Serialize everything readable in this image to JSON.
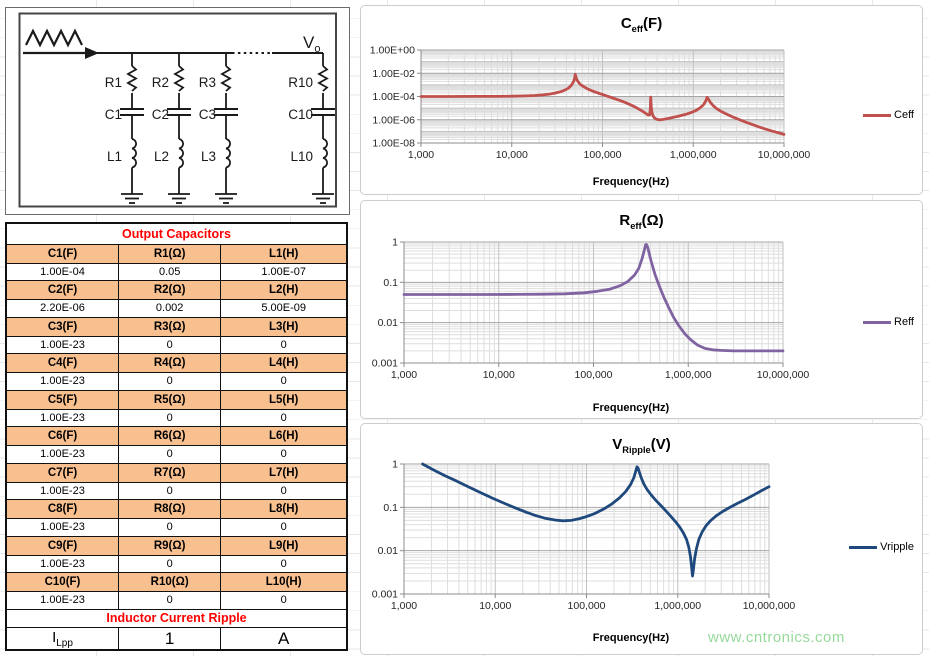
{
  "circuit": {
    "source_icon": "sawtooth-wave",
    "output": {
      "base": "V",
      "sub": "o"
    },
    "branches": [
      {
        "resistor": "R1",
        "capacitor": "C1",
        "inductor": "L1"
      },
      {
        "resistor": "R2",
        "capacitor": "C2",
        "inductor": "L2"
      },
      {
        "resistor": "R3",
        "capacitor": "C3",
        "inductor": "L3"
      },
      {
        "resistor": "R10",
        "capacitor": "C10",
        "inductor": "L10"
      }
    ]
  },
  "table": {
    "title": "Output Capacitors",
    "title_color": "#FF0000",
    "header_bg": "#F8BF8F",
    "component_rows": [
      {
        "labels": [
          "C1(F)",
          "R1(Ω)",
          "L1(H)"
        ],
        "values": [
          "1.00E-04",
          "0.05",
          "1.00E-07"
        ]
      },
      {
        "labels": [
          "C2(F)",
          "R2(Ω)",
          "L2(H)"
        ],
        "values": [
          "2.20E-06",
          "0.002",
          "5.00E-09"
        ]
      },
      {
        "labels": [
          "C3(F)",
          "R3(Ω)",
          "L3(H)"
        ],
        "values": [
          "1.00E-23",
          "0",
          "0"
        ]
      },
      {
        "labels": [
          "C4(F)",
          "R4(Ω)",
          "L4(H)"
        ],
        "values": [
          "1.00E-23",
          "0",
          "0"
        ]
      },
      {
        "labels": [
          "C5(F)",
          "R5(Ω)",
          "L5(H)"
        ],
        "values": [
          "1.00E-23",
          "0",
          "0"
        ]
      },
      {
        "labels": [
          "C6(F)",
          "R6(Ω)",
          "L6(H)"
        ],
        "values": [
          "1.00E-23",
          "0",
          "0"
        ]
      },
      {
        "labels": [
          "C7(F)",
          "R7(Ω)",
          "L7(H)"
        ],
        "values": [
          "1.00E-23",
          "0",
          "0"
        ]
      },
      {
        "labels": [
          "C8(F)",
          "R8(Ω)",
          "L8(H)"
        ],
        "values": [
          "1.00E-23",
          "0",
          "0"
        ]
      },
      {
        "labels": [
          "C9(F)",
          "R9(Ω)",
          "L9(H)"
        ],
        "values": [
          "1.00E-23",
          "0",
          "0"
        ]
      },
      {
        "labels": [
          "C10(F)",
          "R10(Ω)",
          "L10(H)"
        ],
        "values": [
          "1.00E-23",
          "0",
          "0"
        ]
      }
    ],
    "ripple_title": "Inductor Current Ripple",
    "ripple_row": {
      "label": {
        "base": "I",
        "sub": "Lpp"
      },
      "value": "1",
      "unit": "A"
    }
  },
  "chart_data": [
    {
      "type": "line",
      "title": {
        "base": "C",
        "sub": "eff",
        "suffix": "(F)"
      },
      "legend": "Ceff",
      "legend_position": "right",
      "color": "#C0504D",
      "xlabel": "Frequency(Hz)",
      "grid": true,
      "x_log_range": [
        3,
        7
      ],
      "y_log_range": [
        -8,
        0
      ],
      "x_tick_labels": [
        "1,000",
        "10,000",
        "100,000",
        "1,000,000",
        "10,000,000"
      ],
      "y_tick_labels": [
        "1.00E+00",
        "1.00E-02",
        "1.00E-04",
        "1.00E-06",
        "1.00E-08"
      ],
      "y_label_decades": [
        0,
        -2,
        -4,
        -6,
        -8
      ],
      "points": [
        [
          1000,
          0.0001
        ],
        [
          2000,
          0.0001
        ],
        [
          4000,
          0.000101
        ],
        [
          7000,
          0.000103
        ],
        [
          10000,
          0.000106
        ],
        [
          14000,
          0.000112
        ],
        [
          18000,
          0.000122
        ],
        [
          22000,
          0.000138
        ],
        [
          26000,
          0.00016
        ],
        [
          30000,
          0.000195
        ],
        [
          34000,
          0.00025
        ],
        [
          38000,
          0.00034
        ],
        [
          42000,
          0.00052
        ],
        [
          45000,
          0.00085
        ],
        [
          47000,
          0.0014
        ],
        [
          48500,
          0.0024
        ],
        [
          49500,
          0.0045
        ],
        [
          50000,
          0.008
        ],
        [
          50800,
          0.0055
        ],
        [
          52000,
          0.003
        ],
        [
          54000,
          0.0018
        ],
        [
          57000,
          0.0011
        ],
        [
          62000,
          0.0007
        ],
        [
          70000,
          0.00042
        ],
        [
          80000,
          0.00027
        ],
        [
          95000,
          0.00017
        ],
        [
          110000,
          0.000115
        ],
        [
          130000,
          7.5e-05
        ],
        [
          155000,
          4.6e-05
        ],
        [
          185000,
          2.7e-05
        ],
        [
          215000,
          1.6e-05
        ],
        [
          250000,
          8.5e-06
        ],
        [
          280000,
          5e-06
        ],
        [
          305000,
          3.2e-06
        ],
        [
          320000,
          2.5e-06
        ],
        [
          330000,
          2.6e-06
        ],
        [
          336000,
          8e-06
        ],
        [
          340000,
          9e-05
        ],
        [
          344000,
          1.5e-05
        ],
        [
          350000,
          4.5e-06
        ],
        [
          360000,
          2.2e-06
        ],
        [
          375000,
          1.4e-06
        ],
        [
          395000,
          1.1e-06
        ],
        [
          420000,
          1e-06
        ],
        [
          460000,
          1.05e-06
        ],
        [
          520000,
          1.25e-06
        ],
        [
          600000,
          1.6e-06
        ],
        [
          700000,
          2.1e-06
        ],
        [
          820000,
          2.9e-06
        ],
        [
          950000,
          4.2e-06
        ],
        [
          1080000,
          6.5e-06
        ],
        [
          1200000,
          1.1e-05
        ],
        [
          1300000,
          2e-05
        ],
        [
          1370000,
          4e-05
        ],
        [
          1420000,
          8.5e-05
        ],
        [
          1470000,
          6e-05
        ],
        [
          1550000,
          3e-05
        ],
        [
          1650000,
          1.7e-05
        ],
        [
          1800000,
          9.5e-06
        ],
        [
          2000000,
          5.5e-06
        ],
        [
          2300000,
          3.2e-06
        ],
        [
          2700000,
          1.8e-06
        ],
        [
          3200000,
          1.05e-06
        ],
        [
          3800000,
          6.2e-07
        ],
        [
          4500000,
          3.8e-07
        ],
        [
          5500000,
          2.2e-07
        ],
        [
          6800000,
          1.3e-07
        ],
        [
          8200000,
          8.5e-08
        ],
        [
          10000000,
          5.5e-08
        ]
      ]
    },
    {
      "type": "line",
      "title": {
        "base": "R",
        "sub": "eff",
        "suffix": "(Ω)"
      },
      "legend": "Reff",
      "legend_position": "right",
      "color": "#8064A2",
      "xlabel": "Frequency(Hz)",
      "grid": true,
      "x_log_range": [
        3,
        7
      ],
      "y_log_range": [
        -3,
        0
      ],
      "x_tick_labels": [
        "1,000",
        "10,000",
        "100,000",
        "1,000,000",
        "10,000,000"
      ],
      "y_tick_labels": [
        "1",
        "0.1",
        "0.01",
        "0.001"
      ],
      "y_label_decades": [
        0,
        -1,
        -2,
        -3
      ],
      "points": [
        [
          1000,
          0.05
        ],
        [
          3000,
          0.05
        ],
        [
          7000,
          0.05
        ],
        [
          15000,
          0.0502
        ],
        [
          30000,
          0.0508
        ],
        [
          50000,
          0.052
        ],
        [
          80000,
          0.055
        ],
        [
          110000,
          0.06
        ],
        [
          150000,
          0.068
        ],
        [
          190000,
          0.082
        ],
        [
          230000,
          0.105
        ],
        [
          270000,
          0.15
        ],
        [
          300000,
          0.22
        ],
        [
          325000,
          0.38
        ],
        [
          345000,
          0.65
        ],
        [
          355000,
          0.85
        ],
        [
          362000,
          0.87
        ],
        [
          372000,
          0.75
        ],
        [
          385000,
          0.55
        ],
        [
          400000,
          0.38
        ],
        [
          420000,
          0.25
        ],
        [
          445000,
          0.16
        ],
        [
          475000,
          0.105
        ],
        [
          510000,
          0.068
        ],
        [
          560000,
          0.04
        ],
        [
          620000,
          0.024
        ],
        [
          700000,
          0.0135
        ],
        [
          800000,
          0.0082
        ],
        [
          920000,
          0.0053
        ],
        [
          1060000,
          0.0038
        ],
        [
          1250000,
          0.0028
        ],
        [
          1500000,
          0.0023
        ],
        [
          1800000,
          0.00212
        ],
        [
          2200000,
          0.00205
        ],
        [
          3000000,
          0.002
        ],
        [
          5000000,
          0.002
        ],
        [
          7000000,
          0.002
        ],
        [
          10000000,
          0.002
        ]
      ]
    },
    {
      "type": "line",
      "title": {
        "base": "V",
        "sub": "Ripple",
        "suffix": "(V)"
      },
      "legend": "Vripple",
      "legend_position": "right",
      "color": "#1F497D",
      "xlabel": "Frequency(Hz)",
      "grid": true,
      "x_log_range": [
        3,
        7
      ],
      "y_log_range": [
        -3,
        0
      ],
      "x_tick_labels": [
        "1,000",
        "10,000",
        "100,000",
        "1,000,000",
        "10,000,000"
      ],
      "y_tick_labels": [
        "1",
        "0.1",
        "0.01",
        "0.001"
      ],
      "y_label_decades": [
        0,
        -1,
        -2,
        -3
      ],
      "points": [
        [
          1600,
          1.0
        ],
        [
          2100,
          0.73
        ],
        [
          2800,
          0.54
        ],
        [
          3800,
          0.4
        ],
        [
          5200,
          0.29
        ],
        [
          7000,
          0.215
        ],
        [
          9500,
          0.16
        ],
        [
          13000,
          0.12
        ],
        [
          17000,
          0.095
        ],
        [
          22000,
          0.077
        ],
        [
          28000,
          0.064
        ],
        [
          35000,
          0.056
        ],
        [
          45000,
          0.051
        ],
        [
          55000,
          0.049
        ],
        [
          68000,
          0.05
        ],
        [
          82000,
          0.054
        ],
        [
          100000,
          0.061
        ],
        [
          125000,
          0.073
        ],
        [
          155000,
          0.092
        ],
        [
          190000,
          0.12
        ],
        [
          230000,
          0.165
        ],
        [
          270000,
          0.235
        ],
        [
          305000,
          0.34
        ],
        [
          330000,
          0.48
        ],
        [
          348000,
          0.7
        ],
        [
          358000,
          0.86
        ],
        [
          368000,
          0.8
        ],
        [
          382000,
          0.62
        ],
        [
          400000,
          0.47
        ],
        [
          425000,
          0.35
        ],
        [
          460000,
          0.26
        ],
        [
          510000,
          0.195
        ],
        [
          570000,
          0.148
        ],
        [
          650000,
          0.111
        ],
        [
          740000,
          0.083
        ],
        [
          840000,
          0.062
        ],
        [
          950000,
          0.046
        ],
        [
          1060000,
          0.034
        ],
        [
          1160000,
          0.025
        ],
        [
          1250000,
          0.018
        ],
        [
          1320000,
          0.012
        ],
        [
          1380000,
          0.0072
        ],
        [
          1420000,
          0.0042
        ],
        [
          1450000,
          0.0026
        ],
        [
          1480000,
          0.0035
        ],
        [
          1530000,
          0.0065
        ],
        [
          1600000,
          0.011
        ],
        [
          1700000,
          0.018
        ],
        [
          1850000,
          0.027
        ],
        [
          2050000,
          0.038
        ],
        [
          2300000,
          0.05
        ],
        [
          2650000,
          0.064
        ],
        [
          3100000,
          0.08
        ],
        [
          3700000,
          0.099
        ],
        [
          4500000,
          0.123
        ],
        [
          5500000,
          0.152
        ],
        [
          6700000,
          0.19
        ],
        [
          8200000,
          0.24
        ],
        [
          10000000,
          0.3
        ]
      ]
    }
  ],
  "watermark": {
    "text": "www.cntronics.com",
    "color": "#97D99B"
  }
}
